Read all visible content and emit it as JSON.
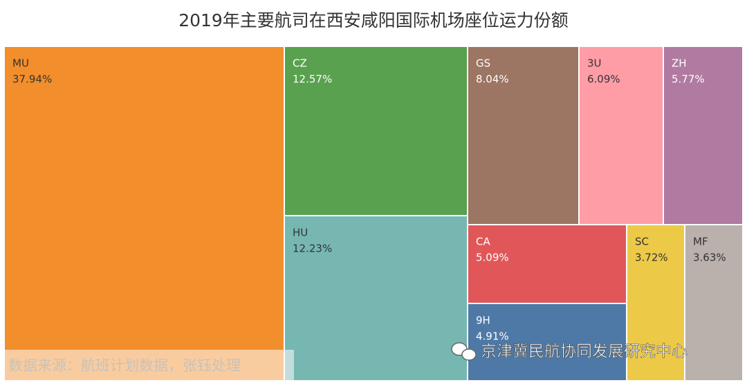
{
  "chart_data": {
    "type": "treemap",
    "title": "2019年主要航司在西安咸阳国际机场座位运力份额",
    "categories": [
      "MU",
      "CZ",
      "HU",
      "GS",
      "3U",
      "ZH",
      "CA",
      "9H",
      "SC",
      "MF"
    ],
    "values": [
      37.94,
      12.57,
      12.23,
      8.04,
      6.09,
      5.77,
      5.09,
      4.91,
      3.72,
      3.63
    ],
    "value_labels": [
      "37.94%",
      "12.57%",
      "12.23%",
      "8.04%",
      "6.09%",
      "5.77%",
      "5.09%",
      "4.91%",
      "3.72%",
      "3.63%"
    ],
    "colors": [
      "#f28e2b",
      "#59a14f",
      "#76b7b2",
      "#9c7563",
      "#ff9da7",
      "#b07aa1",
      "#e15759",
      "#4e79a7",
      "#edc948",
      "#bab0ac"
    ],
    "source": "数据来源：航班计划数据，张钰处理",
    "watermark": "京津冀民航协同发展研究中心"
  }
}
